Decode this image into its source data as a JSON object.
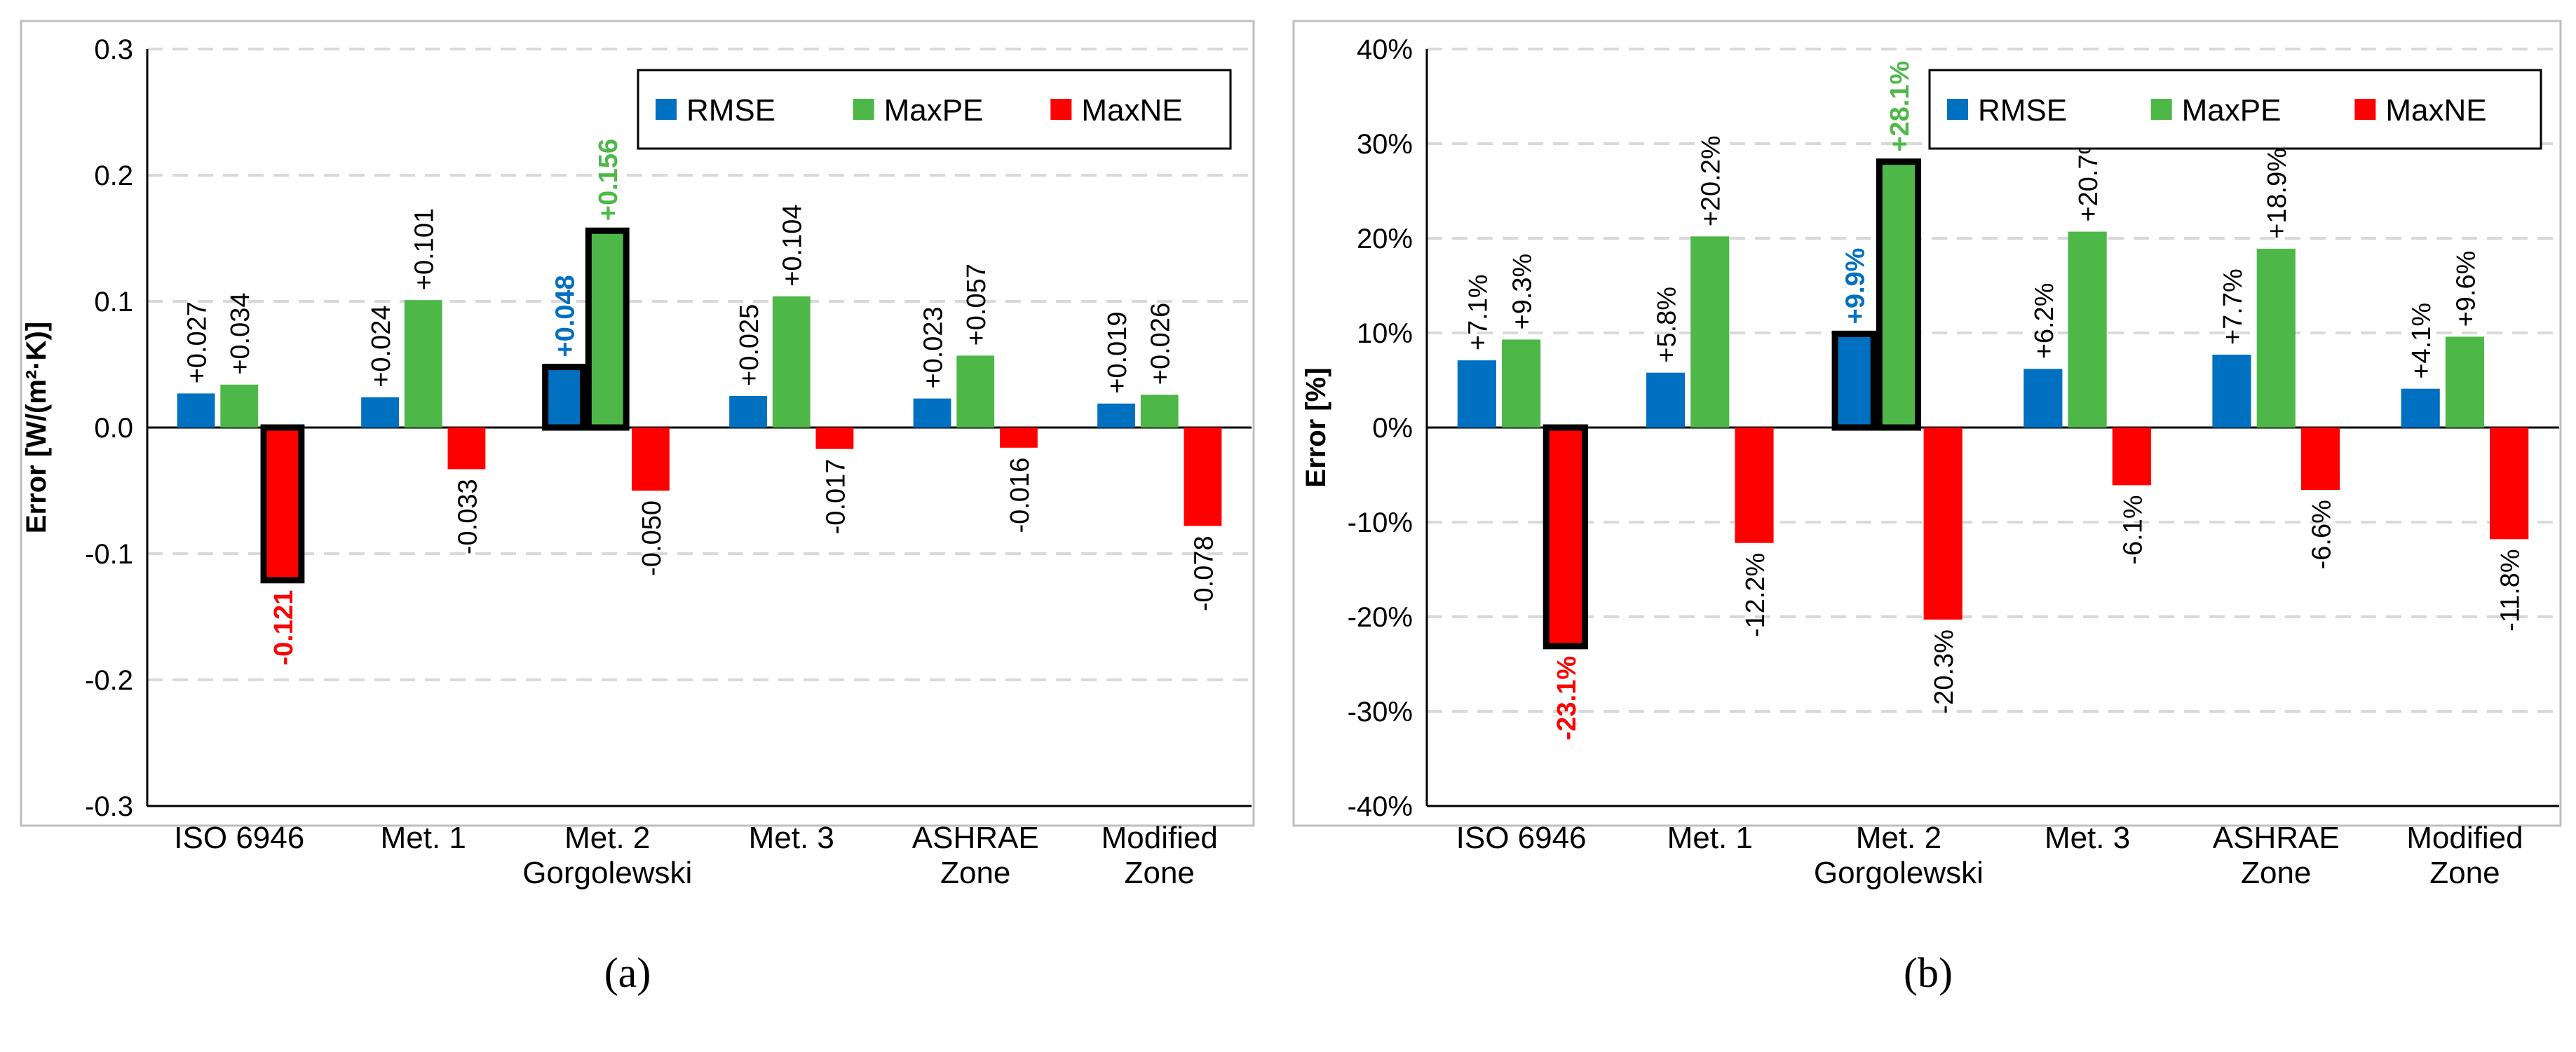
{
  "colors": {
    "rmse": "#0070C0",
    "maxpe": "#4DB848",
    "maxne": "#FF0000",
    "grid": "#D9D9D9"
  },
  "group_label": "Gorgolewski",
  "chart_data": [
    {
      "type": "bar",
      "id": "a",
      "caption": "(a)",
      "ylabel": "Error [W/(m²·K)]",
      "ylim": [
        -0.3,
        0.3
      ],
      "yticks": [
        -0.3,
        -0.2,
        -0.1,
        0.0,
        0.1,
        0.2,
        0.3
      ],
      "ytick_labels": [
        "-0.3",
        "-0.2",
        "-0.1",
        "0.0",
        "0.1",
        "0.2",
        "0.3"
      ],
      "categories": [
        [
          "ISO 6946"
        ],
        [
          "Met. 1"
        ],
        [
          "Met. 2"
        ],
        [
          "Met. 3"
        ],
        [
          "ASHRAE",
          "Zone"
        ],
        [
          "Modified",
          "Zone"
        ]
      ],
      "legend_position": "top-right",
      "series": [
        {
          "name": "RMSE",
          "values": [
            0.027,
            0.024,
            0.048,
            0.025,
            0.023,
            0.019
          ],
          "labels": [
            "+0.027",
            "+0.024",
            "+0.048",
            "+0.025",
            "+0.023",
            "+0.019"
          ]
        },
        {
          "name": "MaxPE",
          "values": [
            0.034,
            0.101,
            0.156,
            0.104,
            0.057,
            0.026
          ],
          "labels": [
            "+0.034",
            "+0.101",
            "+0.156",
            "+0.104",
            "+0.057",
            "+0.026"
          ]
        },
        {
          "name": "MaxNE",
          "values": [
            -0.121,
            -0.033,
            -0.05,
            -0.017,
            -0.016,
            -0.078
          ],
          "labels": [
            "-0.121",
            "-0.033",
            "-0.050",
            "-0.017",
            "-0.016",
            "-0.078"
          ]
        }
      ],
      "highlights": [
        {
          "series": 0,
          "index": 2
        },
        {
          "series": 1,
          "index": 2
        },
        {
          "series": 2,
          "index": 0
        }
      ]
    },
    {
      "type": "bar",
      "id": "b",
      "caption": "(b)",
      "ylabel": "Error [%]",
      "ylim": [
        -40,
        40
      ],
      "yticks": [
        -40,
        -30,
        -20,
        -10,
        0,
        10,
        20,
        30,
        40
      ],
      "ytick_labels": [
        "-40%",
        "-30%",
        "-20%",
        "-10%",
        "0%",
        "10%",
        "20%",
        "30%",
        "40%"
      ],
      "categories": [
        [
          "ISO 6946"
        ],
        [
          "Met. 1"
        ],
        [
          "Met. 2"
        ],
        [
          "Met. 3"
        ],
        [
          "ASHRAE",
          "Zone"
        ],
        [
          "Modified",
          "Zone"
        ]
      ],
      "legend_position": "top-right",
      "series": [
        {
          "name": "RMSE",
          "values": [
            7.1,
            5.8,
            9.9,
            6.2,
            7.7,
            4.1
          ],
          "labels": [
            "+7.1%",
            "+5.8%",
            "+9.9%",
            "+6.2%",
            "+7.7%",
            "+4.1%"
          ]
        },
        {
          "name": "MaxPE",
          "values": [
            9.3,
            20.2,
            28.1,
            20.7,
            18.9,
            9.6
          ],
          "labels": [
            "+9.3%",
            "+20.2%",
            "+28.1%",
            "+20.7%",
            "+18.9%",
            "+9.6%"
          ]
        },
        {
          "name": "MaxNE",
          "values": [
            -23.1,
            -12.2,
            -20.3,
            -6.1,
            -6.6,
            -11.8
          ],
          "labels": [
            "-23.1%",
            "-12.2%",
            "-20.3%",
            "-6.1%",
            "-6.6%",
            "-11.8%"
          ]
        }
      ],
      "highlights": [
        {
          "series": 0,
          "index": 2
        },
        {
          "series": 1,
          "index": 2
        },
        {
          "series": 2,
          "index": 0
        }
      ]
    }
  ]
}
